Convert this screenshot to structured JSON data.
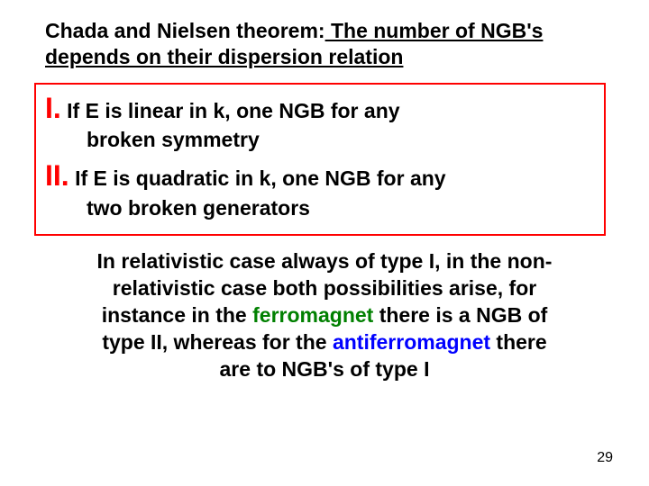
{
  "heading": {
    "lead": "Chada and Nielsen theorem:",
    "rest": " The number of NGB's depends on their dispersion relation"
  },
  "items": [
    {
      "roman": "I.",
      "lead": "If E is linear in k, one NGB for any",
      "cont": "broken symmetry"
    },
    {
      "roman": "II.",
      "lead": "If E is quadratic in k, one NGB for any",
      "cont": "two broken generators"
    }
  ],
  "para": {
    "p1": "In relativistic case always of type I, in the non-",
    "p2": "relativistic case both possibilities arise, for",
    "p3": "instance in the ",
    "ferro": "ferromagnet",
    "p4": " there is a NGB of",
    "p5": "type II, whereas for the ",
    "anti": "antiferromagnet",
    "p6": " there",
    "p7": "are to NGB's of type I"
  },
  "pagenum": "29",
  "colors": {
    "roman": "#ff0000",
    "box_border": "#ff0000",
    "ferromagnet": "#008000",
    "antiferromagnet": "#0000ff",
    "text": "#000000",
    "background": "#ffffff"
  }
}
